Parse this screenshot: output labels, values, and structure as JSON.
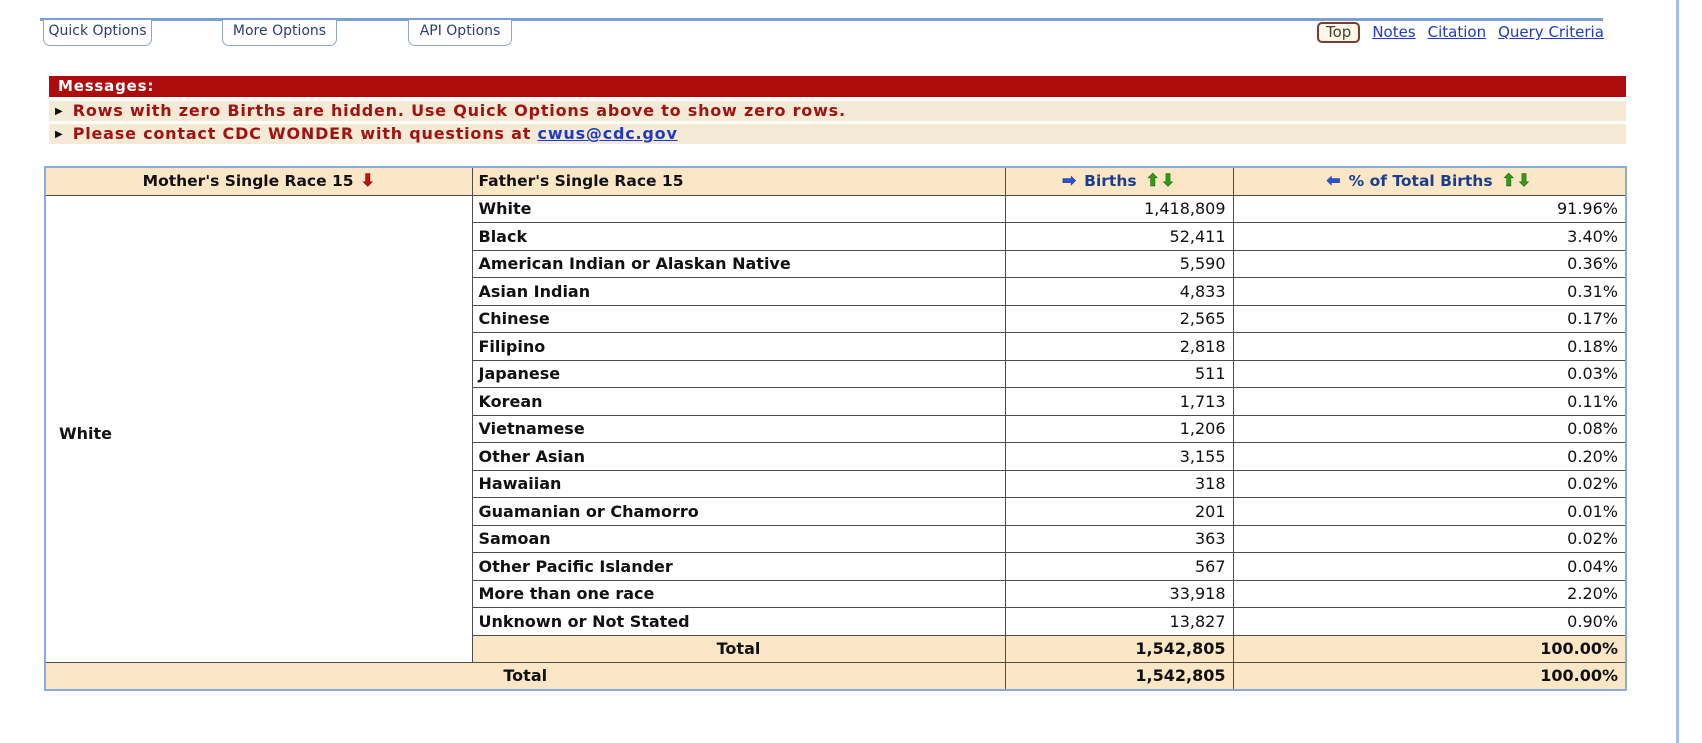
{
  "tabs": [
    {
      "label": "Quick Options"
    },
    {
      "label": "More Options"
    },
    {
      "label": "API Options"
    }
  ],
  "nav": {
    "top_button": "Top",
    "links": [
      "Notes",
      "Citation",
      "Query Criteria"
    ]
  },
  "messages": {
    "header": "Messages:",
    "item1": "Rows with zero Births are hidden. Use Quick Options above to show zero rows.",
    "item2_text": "Please contact CDC WONDER with questions at ",
    "item2_link": "cwus@cdc.gov"
  },
  "icons": {
    "bullet": "▶",
    "sort_desc_red": "⬇",
    "sort_up": "⬆",
    "sort_down": "⬇",
    "col_right": "➡",
    "col_left": "⬅"
  },
  "colors": {
    "accent_red": "#AE0C0C",
    "tan": "#FBE7C6",
    "cream": "#F4EAD6",
    "link_blue": "#2139c9",
    "header_blue": "#1a3e8f",
    "green_arrow": "#2f9e12",
    "table_border_blue": "#8AACDC"
  },
  "table": {
    "headers": {
      "mother": "Mother's Single Race 15",
      "father": "Father's Single Race 15",
      "births": "Births",
      "pct": "% of Total Births"
    },
    "mother_group": "White",
    "rows": [
      {
        "father": "White",
        "births": "1,418,809",
        "pct": "91.96%"
      },
      {
        "father": "Black",
        "births": "52,411",
        "pct": "3.40%"
      },
      {
        "father": "American Indian or Alaskan Native",
        "births": "5,590",
        "pct": "0.36%"
      },
      {
        "father": "Asian Indian",
        "births": "4,833",
        "pct": "0.31%"
      },
      {
        "father": "Chinese",
        "births": "2,565",
        "pct": "0.17%"
      },
      {
        "father": "Filipino",
        "births": "2,818",
        "pct": "0.18%"
      },
      {
        "father": "Japanese",
        "births": "511",
        "pct": "0.03%"
      },
      {
        "father": "Korean",
        "births": "1,713",
        "pct": "0.11%"
      },
      {
        "father": "Vietnamese",
        "births": "1,206",
        "pct": "0.08%"
      },
      {
        "father": "Other Asian",
        "births": "3,155",
        "pct": "0.20%"
      },
      {
        "father": "Hawaiian",
        "births": "318",
        "pct": "0.02%"
      },
      {
        "father": "Guamanian or Chamorro",
        "births": "201",
        "pct": "0.01%"
      },
      {
        "father": "Samoan",
        "births": "363",
        "pct": "0.02%"
      },
      {
        "father": "Other Pacific Islander",
        "births": "567",
        "pct": "0.04%"
      },
      {
        "father": "More than one race",
        "births": "33,918",
        "pct": "2.20%"
      },
      {
        "father": "Unknown or Not Stated",
        "births": "13,827",
        "pct": "0.90%"
      }
    ],
    "group_total": {
      "label": "Total",
      "births": "1,542,805",
      "pct": "100.00%"
    },
    "grand_total": {
      "label": "Total",
      "births": "1,542,805",
      "pct": "100.00%"
    }
  }
}
